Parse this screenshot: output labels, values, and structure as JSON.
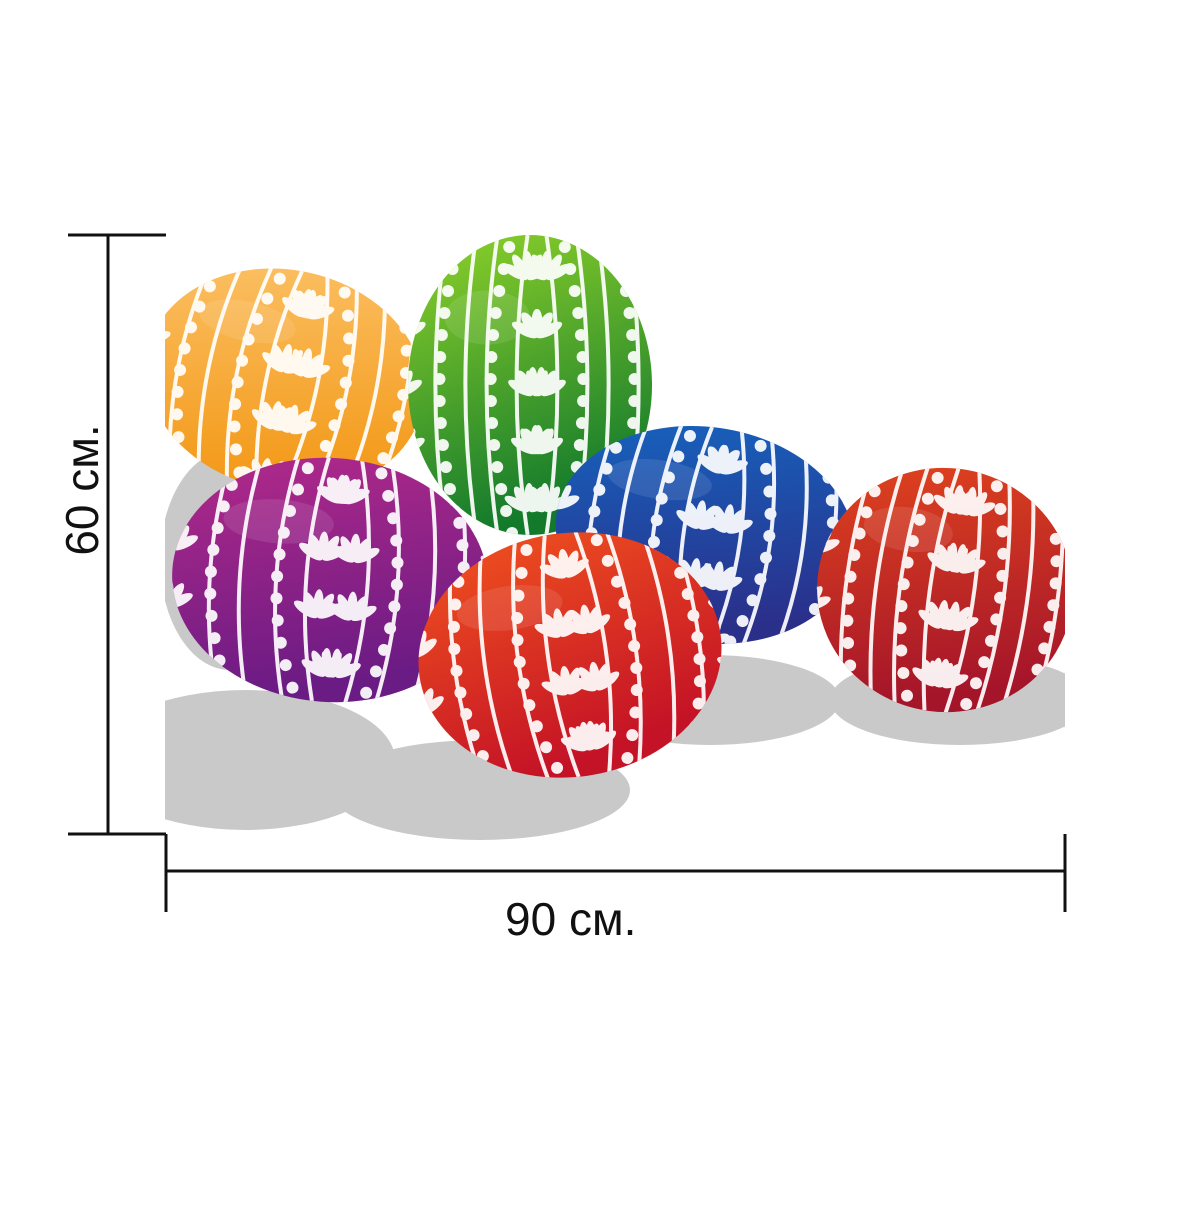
{
  "dimensions": {
    "width_label": "90 см.",
    "height_label": "60 см."
  },
  "colors": {
    "line": "#111111",
    "shadow": "#c9c9c9",
    "pattern": "#ffffff"
  },
  "eggs": [
    {
      "name": "egg-orange",
      "light": "#fcc268",
      "dark": "#f39a1a"
    },
    {
      "name": "egg-green",
      "light": "#8fd22a",
      "dark": "#137a2c"
    },
    {
      "name": "egg-purple",
      "light": "#b42a8a",
      "dark": "#6a1b84"
    },
    {
      "name": "egg-blue",
      "light": "#1565c0",
      "dark": "#2a2f8a"
    },
    {
      "name": "egg-red",
      "light": "#f0521f",
      "dark": "#c41226"
    },
    {
      "name": "egg-darkred",
      "light": "#e2451d",
      "dark": "#a5152a"
    }
  ]
}
